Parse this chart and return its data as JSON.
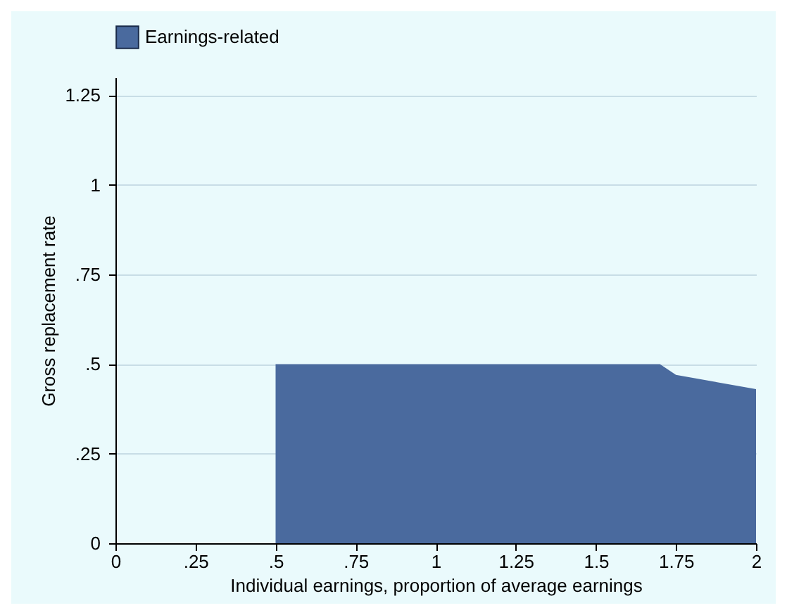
{
  "chart_data": {
    "type": "area",
    "xlabel": "Individual earnings, proportion of average earnings",
    "ylabel": "Gross replacement rate",
    "x": [
      0,
      0.5,
      0.5,
      1.7,
      1.75,
      2
    ],
    "series": [
      {
        "name": "Earnings-related",
        "color": "#4a6a9e",
        "values": [
          0,
          0,
          0.5,
          0.5,
          0.47,
          0.43
        ]
      }
    ],
    "xlim": [
      0,
      2
    ],
    "xticks": [
      0,
      {
        "value": 0.25,
        "label": ".25"
      },
      {
        "value": 0.5,
        "label": ".5"
      },
      {
        "value": 0.75,
        "label": ".75"
      },
      1,
      1.25,
      1.5,
      1.75,
      2
    ],
    "ylim": [
      0,
      1.3
    ],
    "yticks": [
      0,
      {
        "value": 0.25,
        "label": ".25"
      },
      {
        "value": 0.5,
        "label": ".5"
      },
      {
        "value": 0.75,
        "label": ".75"
      },
      1,
      1.25
    ],
    "grid": "y",
    "legend": "top"
  }
}
